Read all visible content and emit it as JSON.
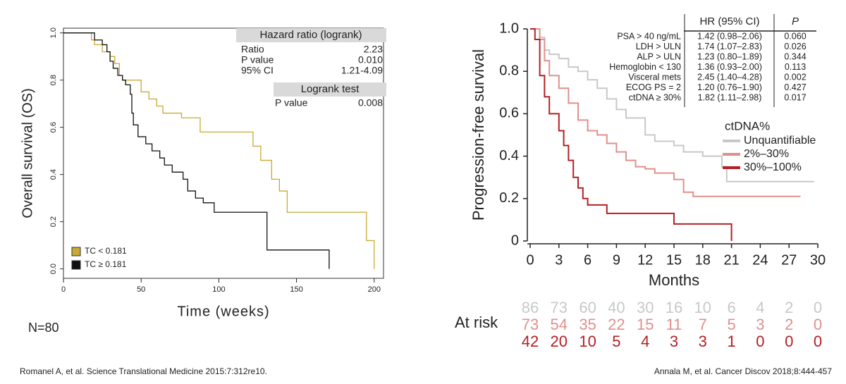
{
  "chart_data": [
    {
      "type": "line",
      "step": true,
      "xlabel": "Time (weeks)",
      "ylabel": "Overall survival (OS)",
      "xlim": [
        0,
        206
      ],
      "ylim": [
        -0.04,
        1.02
      ],
      "xticks": [
        0,
        50,
        100,
        150,
        200
      ],
      "yticks": [
        {
          "value": 0,
          "label": "0.0"
        },
        {
          "value": 0.2,
          "label": "0.2"
        },
        {
          "value": 0.4,
          "label": "0.4"
        },
        {
          "value": 0.6,
          "label": "0.6"
        },
        {
          "value": 0.8,
          "label": "0.8"
        },
        {
          "value": 1,
          "label": "1.0"
        }
      ],
      "frame": true,
      "legend": "lower left",
      "series": [
        {
          "name": "TC < 0.181",
          "color": "#c9a934",
          "x": [
            0,
            18,
            20,
            25,
            30,
            33,
            36,
            38,
            50,
            55,
            60,
            64,
            76,
            88,
            122,
            127,
            134,
            139,
            144,
            195,
            200
          ],
          "values": [
            1,
            0.97,
            0.95,
            0.92,
            0.9,
            0.87,
            0.82,
            0.8,
            0.75,
            0.72,
            0.69,
            0.66,
            0.64,
            0.58,
            0.52,
            0.46,
            0.38,
            0.33,
            0.24,
            0.12,
            0
          ]
        },
        {
          "name": "TC ≥ 0.181",
          "color": "#111111",
          "x": [
            0,
            20,
            25,
            28,
            30,
            32,
            35,
            38,
            40,
            43,
            44,
            45,
            48,
            53,
            57,
            62,
            65,
            70,
            77,
            80,
            85,
            90,
            97,
            131,
            171
          ],
          "values": [
            1,
            0.97,
            0.95,
            0.92,
            0.88,
            0.85,
            0.82,
            0.8,
            0.78,
            0.74,
            0.66,
            0.61,
            0.56,
            0.53,
            0.5,
            0.47,
            0.44,
            0.41,
            0.38,
            0.33,
            0.3,
            0.28,
            0.24,
            0.08,
            0
          ]
        }
      ],
      "stats": {
        "title": "Hazard ratio (logrank)",
        "rows": [
          [
            "Ratio",
            "2.23"
          ],
          [
            "P value",
            "0.010"
          ],
          [
            "95% CI",
            "1.21-4.09"
          ]
        ],
        "test_title": "Logrank test",
        "test_rows": [
          [
            "P value",
            "0.008"
          ]
        ]
      },
      "annotation": "N=80"
    },
    {
      "type": "line",
      "step": true,
      "xlabel": "Months",
      "ylabel": "Progression-free survival",
      "xlim": [
        0,
        30
      ],
      "ylim": [
        0,
        1
      ],
      "xticks": [
        0,
        3,
        6,
        9,
        12,
        15,
        18,
        21,
        24,
        27,
        30
      ],
      "yticks": [
        0,
        0.2,
        0.4,
        0.6,
        0.8,
        {
          "value": 1,
          "label": "1.0"
        }
      ],
      "frame": false,
      "legend": "right",
      "legend_title": "ctDNA%",
      "series": [
        {
          "name": "Unquantifiable",
          "color": "#c8c8c8",
          "x": [
            0,
            1,
            1.5,
            2,
            3,
            4,
            5,
            6,
            7,
            8,
            9,
            10,
            12,
            13,
            15,
            16,
            18,
            20,
            20.5,
            29.6
          ],
          "values": [
            1,
            0.96,
            0.9,
            0.88,
            0.86,
            0.82,
            0.8,
            0.76,
            0.72,
            0.67,
            0.62,
            0.58,
            0.5,
            0.47,
            0.45,
            0.42,
            0.4,
            0.35,
            0.28,
            0.28
          ]
        },
        {
          "name": "2%–30%",
          "color": "#e0908c",
          "x": [
            0,
            1,
            1.5,
            2,
            3,
            4,
            5,
            6,
            7,
            8,
            9,
            10,
            11,
            12,
            13,
            15,
            16,
            17,
            28.2
          ],
          "values": [
            1,
            0.95,
            0.85,
            0.78,
            0.72,
            0.65,
            0.57,
            0.52,
            0.5,
            0.46,
            0.42,
            0.38,
            0.35,
            0.34,
            0.32,
            0.29,
            0.23,
            0.21,
            0.21
          ]
        },
        {
          "name": "30%–100%",
          "color": "#b22025",
          "x": [
            0,
            0.5,
            1,
            1.5,
            2,
            3,
            3.5,
            4,
            4.5,
            5,
            5.5,
            6,
            8,
            15,
            21
          ],
          "values": [
            1,
            0.95,
            0.78,
            0.68,
            0.6,
            0.52,
            0.45,
            0.38,
            0.3,
            0.25,
            0.2,
            0.17,
            0.13,
            0.08,
            0
          ]
        }
      ],
      "hr_table": {
        "header": [
          "HR (95% CI)",
          "P"
        ],
        "rows": [
          [
            "PSA > 40 ng/mL",
            "1.42 (0.98–2.06)",
            "0.060"
          ],
          [
            "LDH > ULN",
            "1.74 (1.07–2.83)",
            "0.026"
          ],
          [
            "ALP > ULN",
            "1.23 (0.80–1.89)",
            "0.344"
          ],
          [
            "Hemoglobin < 130",
            "1.36 (0.93–2.00)",
            "0.113"
          ],
          [
            "Visceral mets",
            "2.45 (1.40–4.28)",
            "0.002"
          ],
          [
            "ECOG PS = 2",
            "1.20 (0.76–1.90)",
            "0.427"
          ],
          [
            "ctDNA ≥ 30%",
            "1.82 (1.11–2.98)",
            "0.017"
          ]
        ]
      },
      "at_risk": {
        "label": "At risk",
        "rows": [
          [
            86,
            73,
            60,
            40,
            30,
            16,
            10,
            6,
            4,
            2,
            0
          ],
          [
            73,
            54,
            35,
            22,
            15,
            11,
            7,
            5,
            3,
            2,
            0
          ],
          [
            42,
            20,
            10,
            5,
            4,
            3,
            3,
            1,
            0,
            0,
            0
          ]
        ]
      }
    }
  ],
  "citations": [
    "Romanel A, et al. Science Translational Medicine  2015:7:312re10.",
    "Annala M, et al. Cancer Discov 2018;8:444-457"
  ]
}
